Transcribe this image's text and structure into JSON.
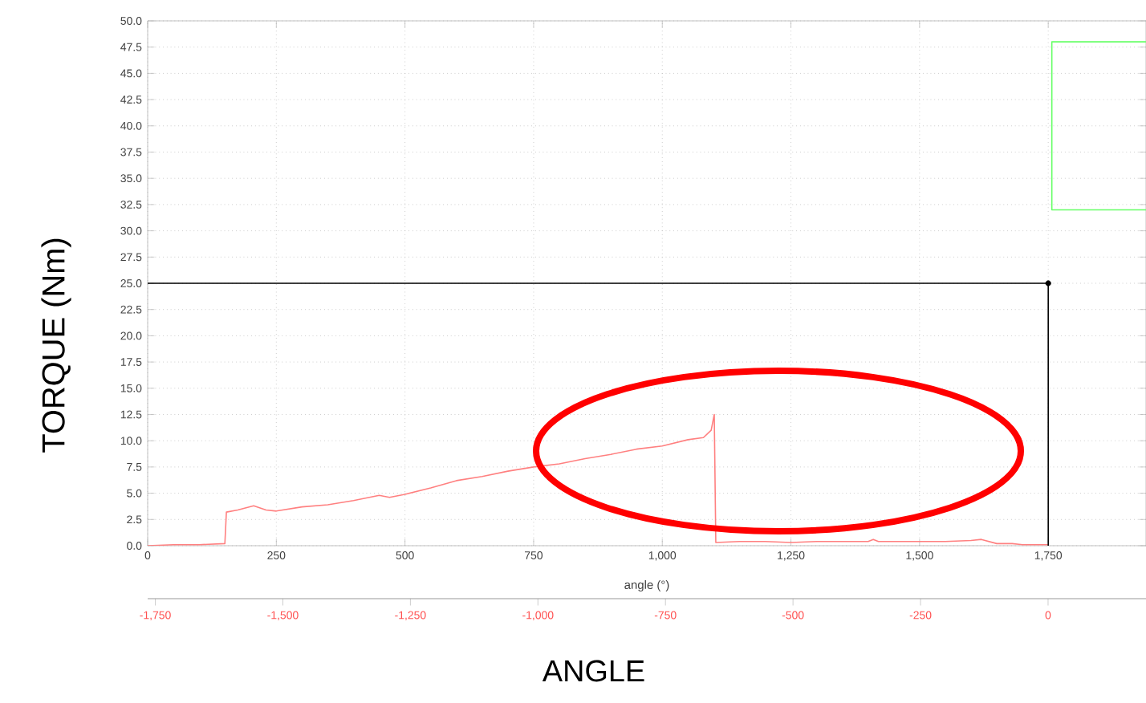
{
  "chart_data": {
    "type": "line",
    "xlabel": "angle (°)",
    "ylabel": "TORQUE (Nm)",
    "x2label": "ANGLE",
    "xlim": [
      0,
      1940
    ],
    "ylim": [
      0,
      50
    ],
    "xticks": [
      0,
      250,
      500,
      750,
      {
        "value": 1000,
        "label": "1,000"
      },
      {
        "value": 1250,
        "label": "1,250"
      },
      {
        "value": 1500,
        "label": "1,500"
      },
      {
        "value": 1750,
        "label": "1,750"
      }
    ],
    "yticks": [
      {
        "value": 0,
        "label": "0.0"
      },
      {
        "value": 2.5,
        "label": "2.5"
      },
      {
        "value": 5,
        "label": "5.0"
      },
      {
        "value": 7.5,
        "label": "7.5"
      },
      {
        "value": 10,
        "label": "10.0"
      },
      {
        "value": 12.5,
        "label": "12.5"
      },
      {
        "value": 15,
        "label": "15.0"
      },
      {
        "value": 17.5,
        "label": "17.5"
      },
      {
        "value": 20,
        "label": "20.0"
      },
      {
        "value": 22.5,
        "label": "22.5"
      },
      {
        "value": 25,
        "label": "25.0"
      },
      {
        "value": 27.5,
        "label": "27.5"
      },
      {
        "value": 30,
        "label": "30.0"
      },
      {
        "value": 32.5,
        "label": "32.5"
      },
      {
        "value": 35,
        "label": "35.0"
      },
      {
        "value": 37.5,
        "label": "37.5"
      },
      {
        "value": 40,
        "label": "40.0"
      },
      {
        "value": 42.5,
        "label": "42.5"
      },
      {
        "value": 45,
        "label": "45.0"
      },
      {
        "value": 47.5,
        "label": "47.5"
      },
      {
        "value": 50,
        "label": "50.0"
      }
    ],
    "x2lim": [
      -1765,
      192
    ],
    "x2ticks": [
      {
        "value": -1750,
        "label": "-1,750"
      },
      {
        "value": -1500,
        "label": "-1,500"
      },
      {
        "value": -1250,
        "label": "-1,250"
      },
      {
        "value": -1000,
        "label": "-1,000"
      },
      -750,
      -500,
      -250,
      0
    ],
    "grid": true,
    "series": [
      {
        "type": "line",
        "color": "#ff8080",
        "x": [
          0,
          50,
          100,
          150,
          153,
          175,
          206,
          230,
          250,
          300,
          350,
          400,
          450,
          470,
          500,
          550,
          600,
          650,
          700,
          750,
          800,
          850,
          900,
          950,
          1000,
          1050,
          1080,
          1095,
          1101,
          1104,
          1150,
          1200,
          1250,
          1300,
          1350,
          1400,
          1410,
          1420,
          1450,
          1500,
          1550,
          1600,
          1620,
          1650,
          1680,
          1700,
          1750
        ],
        "values": [
          0,
          0.1,
          0.1,
          0.2,
          3.2,
          3.4,
          3.8,
          3.4,
          3.3,
          3.7,
          3.9,
          4.3,
          4.8,
          4.6,
          4.9,
          5.5,
          6.2,
          6.6,
          7.1,
          7.5,
          7.8,
          8.3,
          8.7,
          9.2,
          9.5,
          10.1,
          10.3,
          11.0,
          12.5,
          0.3,
          0.4,
          0.4,
          0.3,
          0.4,
          0.4,
          0.4,
          0.6,
          0.4,
          0.4,
          0.4,
          0.4,
          0.5,
          0.6,
          0.2,
          0.2,
          0.1,
          0.1
        ]
      },
      {
        "color": "#000000",
        "x": [
          0,
          1750,
          1750
        ],
        "values": [
          25,
          25,
          0
        ]
      },
      {
        "type": "scatter",
        "color": "#000000",
        "x": [
          1750
        ],
        "values": [
          25
        ]
      },
      {
        "type": "line",
        "color": "#66ff66",
        "x": [
          1940,
          1757,
          1757,
          1940
        ],
        "values": [
          48,
          48,
          32,
          32
        ]
      }
    ]
  }
}
